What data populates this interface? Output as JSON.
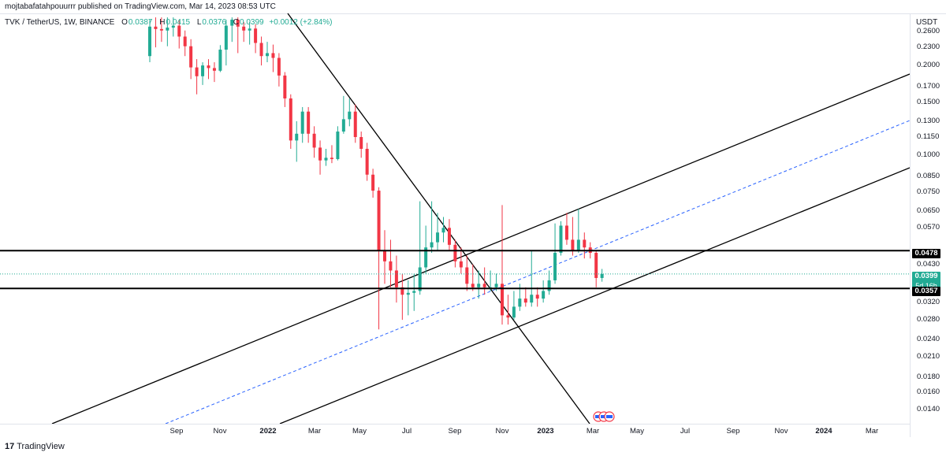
{
  "header": {
    "published": "mojtabafatahpouurrr published on TradingView.com, Mar 14, 2023 08:53 UTC"
  },
  "legend": {
    "symbol": "TVK / TetherUS, 1W, BINANCE",
    "open_label": "O",
    "open": "0.0387",
    "high_label": "H",
    "high": "0.0415",
    "low_label": "L",
    "low": "0.0376",
    "close_label": "C",
    "close": "0.0399",
    "change": "+0.0012 (+2.84%)"
  },
  "price_axis": {
    "unit": "USDT",
    "ticks": [
      "0.2600",
      "0.2300",
      "0.2000",
      "0.1700",
      "0.1500",
      "0.1300",
      "0.1150",
      "0.1000",
      "0.0850",
      "0.0750",
      "0.0650",
      "0.0570",
      "0.0430",
      "0.0320",
      "0.0280",
      "0.0240",
      "0.0210",
      "0.0180",
      "0.0160",
      "0.0140"
    ]
  },
  "time_axis": {
    "ticks": [
      "Sep",
      "Nov",
      "2022",
      "Mar",
      "May",
      "Jul",
      "Sep",
      "Nov",
      "2023",
      "Mar",
      "May",
      "Jul",
      "Sep",
      "Nov",
      "2024",
      "Mar"
    ]
  },
  "price_tags": {
    "resistance": "0.0478",
    "current": "0.0399",
    "countdown": "5d 16h",
    "support": "0.0357"
  },
  "colors": {
    "up": "#22ab94",
    "down": "#f23645",
    "trend_line": "#000000",
    "mid_line": "#2962ff"
  },
  "footer": {
    "logo_mark": "17",
    "brand": "TradingView"
  },
  "chart_data": {
    "type": "candlestick",
    "symbol": "TVK/USDT",
    "interval": "1W",
    "scale": "log",
    "ylim": [
      0.013,
      0.29
    ],
    "horizontal_levels": [
      0.0478,
      0.0357
    ],
    "last_price": 0.0399,
    "candles": [
      {
        "o": 0.215,
        "c": 0.27,
        "h": 0.285,
        "l": 0.205
      },
      {
        "o": 0.27,
        "c": 0.265,
        "h": 0.29,
        "l": 0.23
      },
      {
        "o": 0.265,
        "c": 0.262,
        "h": 0.29,
        "l": 0.24
      },
      {
        "o": 0.262,
        "c": 0.268,
        "h": 0.29,
        "l": 0.232
      },
      {
        "o": 0.268,
        "c": 0.272,
        "h": 0.29,
        "l": 0.25
      },
      {
        "o": 0.272,
        "c": 0.25,
        "h": 0.285,
        "l": 0.228
      },
      {
        "o": 0.25,
        "c": 0.232,
        "h": 0.262,
        "l": 0.215
      },
      {
        "o": 0.232,
        "c": 0.197,
        "h": 0.245,
        "l": 0.18
      },
      {
        "o": 0.197,
        "c": 0.184,
        "h": 0.21,
        "l": 0.16
      },
      {
        "o": 0.184,
        "c": 0.2,
        "h": 0.205,
        "l": 0.172
      },
      {
        "o": 0.2,
        "c": 0.196,
        "h": 0.21,
        "l": 0.18
      },
      {
        "o": 0.196,
        "c": 0.192,
        "h": 0.205,
        "l": 0.176
      },
      {
        "o": 0.192,
        "c": 0.226,
        "h": 0.234,
        "l": 0.19
      },
      {
        "o": 0.226,
        "c": 0.272,
        "h": 0.285,
        "l": 0.2
      },
      {
        "o": 0.272,
        "c": 0.285,
        "h": 0.29,
        "l": 0.24
      },
      {
        "o": 0.285,
        "c": 0.27,
        "h": 0.29,
        "l": 0.22
      },
      {
        "o": 0.27,
        "c": 0.262,
        "h": 0.28,
        "l": 0.24
      },
      {
        "o": 0.262,
        "c": 0.266,
        "h": 0.28,
        "l": 0.235
      },
      {
        "o": 0.266,
        "c": 0.238,
        "h": 0.275,
        "l": 0.22
      },
      {
        "o": 0.238,
        "c": 0.215,
        "h": 0.25,
        "l": 0.2
      },
      {
        "o": 0.215,
        "c": 0.22,
        "h": 0.24,
        "l": 0.205
      },
      {
        "o": 0.22,
        "c": 0.212,
        "h": 0.235,
        "l": 0.19
      },
      {
        "o": 0.212,
        "c": 0.185,
        "h": 0.22,
        "l": 0.17
      },
      {
        "o": 0.185,
        "c": 0.155,
        "h": 0.19,
        "l": 0.145
      },
      {
        "o": 0.155,
        "c": 0.112,
        "h": 0.16,
        "l": 0.105
      },
      {
        "o": 0.112,
        "c": 0.118,
        "h": 0.13,
        "l": 0.095
      },
      {
        "o": 0.118,
        "c": 0.14,
        "h": 0.145,
        "l": 0.11
      },
      {
        "o": 0.14,
        "c": 0.118,
        "h": 0.145,
        "l": 0.11
      },
      {
        "o": 0.118,
        "c": 0.106,
        "h": 0.125,
        "l": 0.098
      },
      {
        "o": 0.106,
        "c": 0.096,
        "h": 0.112,
        "l": 0.086
      },
      {
        "o": 0.096,
        "c": 0.098,
        "h": 0.105,
        "l": 0.092
      },
      {
        "o": 0.098,
        "c": 0.097,
        "h": 0.108,
        "l": 0.094
      },
      {
        "o": 0.097,
        "c": 0.12,
        "h": 0.125,
        "l": 0.096
      },
      {
        "o": 0.12,
        "c": 0.132,
        "h": 0.158,
        "l": 0.118
      },
      {
        "o": 0.132,
        "c": 0.14,
        "h": 0.155,
        "l": 0.125
      },
      {
        "o": 0.14,
        "c": 0.115,
        "h": 0.148,
        "l": 0.11
      },
      {
        "o": 0.115,
        "c": 0.105,
        "h": 0.12,
        "l": 0.098
      },
      {
        "o": 0.105,
        "c": 0.086,
        "h": 0.11,
        "l": 0.082
      },
      {
        "o": 0.086,
        "c": 0.076,
        "h": 0.09,
        "l": 0.072
      },
      {
        "o": 0.076,
        "c": 0.048,
        "h": 0.078,
        "l": 0.026
      },
      {
        "o": 0.048,
        "c": 0.044,
        "h": 0.056,
        "l": 0.037
      },
      {
        "o": 0.044,
        "c": 0.041,
        "h": 0.052,
        "l": 0.036
      },
      {
        "o": 0.041,
        "c": 0.036,
        "h": 0.046,
        "l": 0.032
      },
      {
        "o": 0.036,
        "c": 0.034,
        "h": 0.04,
        "l": 0.028
      },
      {
        "o": 0.034,
        "c": 0.0345,
        "h": 0.038,
        "l": 0.029
      },
      {
        "o": 0.0345,
        "c": 0.035,
        "h": 0.04,
        "l": 0.03
      },
      {
        "o": 0.035,
        "c": 0.042,
        "h": 0.07,
        "l": 0.034
      },
      {
        "o": 0.042,
        "c": 0.049,
        "h": 0.058,
        "l": 0.04
      },
      {
        "o": 0.049,
        "c": 0.051,
        "h": 0.07,
        "l": 0.047
      },
      {
        "o": 0.051,
        "c": 0.055,
        "h": 0.064,
        "l": 0.048
      },
      {
        "o": 0.055,
        "c": 0.057,
        "h": 0.062,
        "l": 0.051
      },
      {
        "o": 0.057,
        "c": 0.05,
        "h": 0.061,
        "l": 0.048
      },
      {
        "o": 0.05,
        "c": 0.044,
        "h": 0.052,
        "l": 0.042
      },
      {
        "o": 0.044,
        "c": 0.042,
        "h": 0.049,
        "l": 0.04
      },
      {
        "o": 0.042,
        "c": 0.037,
        "h": 0.046,
        "l": 0.035
      },
      {
        "o": 0.037,
        "c": 0.036,
        "h": 0.043,
        "l": 0.035
      },
      {
        "o": 0.036,
        "c": 0.037,
        "h": 0.041,
        "l": 0.033
      },
      {
        "o": 0.037,
        "c": 0.036,
        "h": 0.042,
        "l": 0.034
      },
      {
        "o": 0.036,
        "c": 0.036,
        "h": 0.041,
        "l": 0.035
      },
      {
        "o": 0.036,
        "c": 0.037,
        "h": 0.04,
        "l": 0.035
      },
      {
        "o": 0.037,
        "c": 0.029,
        "h": 0.068,
        "l": 0.027
      },
      {
        "o": 0.029,
        "c": 0.0285,
        "h": 0.034,
        "l": 0.027
      },
      {
        "o": 0.0285,
        "c": 0.031,
        "h": 0.035,
        "l": 0.028
      },
      {
        "o": 0.031,
        "c": 0.033,
        "h": 0.037,
        "l": 0.03
      },
      {
        "o": 0.033,
        "c": 0.032,
        "h": 0.036,
        "l": 0.031
      },
      {
        "o": 0.032,
        "c": 0.034,
        "h": 0.048,
        "l": 0.031
      },
      {
        "o": 0.034,
        "c": 0.033,
        "h": 0.036,
        "l": 0.031
      },
      {
        "o": 0.033,
        "c": 0.035,
        "h": 0.038,
        "l": 0.032
      },
      {
        "o": 0.035,
        "c": 0.038,
        "h": 0.041,
        "l": 0.034
      },
      {
        "o": 0.038,
        "c": 0.047,
        "h": 0.059,
        "l": 0.037
      },
      {
        "o": 0.047,
        "c": 0.058,
        "h": 0.06,
        "l": 0.046
      },
      {
        "o": 0.058,
        "c": 0.052,
        "h": 0.064,
        "l": 0.05
      },
      {
        "o": 0.052,
        "c": 0.048,
        "h": 0.062,
        "l": 0.046
      },
      {
        "o": 0.048,
        "c": 0.052,
        "h": 0.066,
        "l": 0.047
      },
      {
        "o": 0.052,
        "c": 0.049,
        "h": 0.055,
        "l": 0.045
      },
      {
        "o": 0.049,
        "c": 0.047,
        "h": 0.051,
        "l": 0.045
      },
      {
        "o": 0.047,
        "c": 0.0387,
        "h": 0.048,
        "l": 0.036
      },
      {
        "o": 0.0387,
        "c": 0.0399,
        "h": 0.0415,
        "l": 0.0376
      }
    ]
  }
}
